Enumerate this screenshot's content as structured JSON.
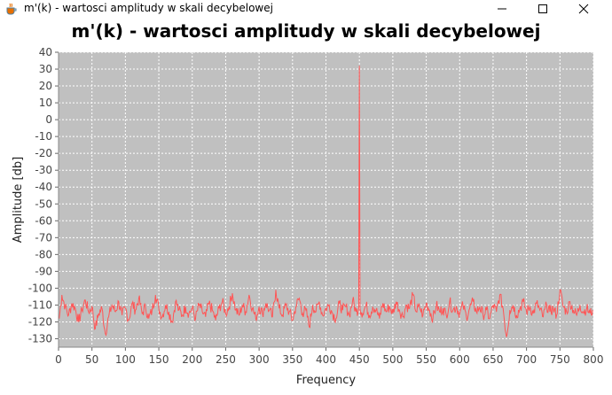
{
  "window": {
    "title": "m'(k) - wartosci amplitudy w skali decybelowej",
    "icon": "java-cup-icon",
    "controls": [
      "minimize",
      "maximize",
      "close"
    ]
  },
  "chart_data": {
    "type": "line",
    "title": "m'(k) - wartosci amplitudy w skali decybelowej",
    "xlabel": "Frequency",
    "ylabel": "Amplitude [db]",
    "xlim": [
      0,
      800
    ],
    "ylim": [
      -135,
      40
    ],
    "x_ticks": [
      0,
      50,
      100,
      150,
      200,
      250,
      300,
      350,
      400,
      450,
      500,
      550,
      600,
      650,
      700,
      750,
      800
    ],
    "y_ticks": [
      40,
      30,
      20,
      10,
      0,
      -10,
      -20,
      -30,
      -40,
      -50,
      -60,
      -70,
      -80,
      -90,
      -100,
      -110,
      -120,
      -130
    ],
    "grid": true,
    "legend": "none",
    "series_color": "#ff5555",
    "background": "#c0c0c0",
    "noise_floor_mean": -113,
    "noise_floor_range": [
      -129,
      -101
    ],
    "x_range": [
      1,
      799
    ],
    "peak": {
      "x": 450,
      "y": 32
    },
    "points": [
      [
        1,
        -118
      ],
      [
        5,
        -104
      ],
      [
        10,
        -111
      ],
      [
        15,
        -116
      ],
      [
        20,
        -109
      ],
      [
        25,
        -112
      ],
      [
        30,
        -120
      ],
      [
        35,
        -113
      ],
      [
        40,
        -107
      ],
      [
        45,
        -114
      ],
      [
        50,
        -111
      ],
      [
        55,
        -124
      ],
      [
        60,
        -115
      ],
      [
        65,
        -112
      ],
      [
        70,
        -127
      ],
      [
        75,
        -117
      ],
      [
        80,
        -110
      ],
      [
        85,
        -114
      ],
      [
        90,
        -108
      ],
      [
        95,
        -116
      ],
      [
        100,
        -112
      ],
      [
        105,
        -119
      ],
      [
        110,
        -109
      ],
      [
        115,
        -113
      ],
      [
        120,
        -106
      ],
      [
        125,
        -115
      ],
      [
        130,
        -111
      ],
      [
        135,
        -118
      ],
      [
        140,
        -113
      ],
      [
        145,
        -104
      ],
      [
        150,
        -112
      ],
      [
        155,
        -117
      ],
      [
        160,
        -110
      ],
      [
        165,
        -114
      ],
      [
        170,
        -120
      ],
      [
        175,
        -108
      ],
      [
        180,
        -113
      ],
      [
        185,
        -116
      ],
      [
        190,
        -111
      ],
      [
        195,
        -115
      ],
      [
        200,
        -112
      ],
      [
        205,
        -118
      ],
      [
        210,
        -110
      ],
      [
        215,
        -114
      ],
      [
        220,
        -117
      ],
      [
        225,
        -109
      ],
      [
        230,
        -113
      ],
      [
        235,
        -119
      ],
      [
        240,
        -112
      ],
      [
        245,
        -108
      ],
      [
        250,
        -115
      ],
      [
        255,
        -111
      ],
      [
        260,
        -103
      ],
      [
        265,
        -113
      ],
      [
        270,
        -116
      ],
      [
        275,
        -110
      ],
      [
        280,
        -114
      ],
      [
        285,
        -104
      ],
      [
        290,
        -112
      ],
      [
        295,
        -118
      ],
      [
        300,
        -111
      ],
      [
        305,
        -115
      ],
      [
        310,
        -109
      ],
      [
        315,
        -113
      ],
      [
        320,
        -117
      ],
      [
        325,
        -101
      ],
      [
        330,
        -112
      ],
      [
        335,
        -116
      ],
      [
        340,
        -110
      ],
      [
        345,
        -114
      ],
      [
        350,
        -119
      ],
      [
        355,
        -111
      ],
      [
        360,
        -106
      ],
      [
        365,
        -115
      ],
      [
        370,
        -113
      ],
      [
        375,
        -123
      ],
      [
        380,
        -110
      ],
      [
        385,
        -114
      ],
      [
        390,
        -108
      ],
      [
        395,
        -116
      ],
      [
        400,
        -112
      ],
      [
        405,
        -110
      ],
      [
        410,
        -115
      ],
      [
        415,
        -118
      ],
      [
        420,
        -109
      ],
      [
        425,
        -113
      ],
      [
        430,
        -111
      ],
      [
        435,
        -116
      ],
      [
        440,
        -107
      ],
      [
        445,
        -114
      ],
      [
        449,
        -112
      ],
      [
        450,
        32
      ],
      [
        451,
        -112
      ],
      [
        455,
        -115
      ],
      [
        460,
        -110
      ],
      [
        465,
        -116
      ],
      [
        470,
        -111
      ],
      [
        475,
        -113
      ],
      [
        480,
        -118
      ],
      [
        485,
        -109
      ],
      [
        490,
        -114
      ],
      [
        495,
        -111
      ],
      [
        500,
        -115
      ],
      [
        505,
        -108
      ],
      [
        510,
        -113
      ],
      [
        515,
        -117
      ],
      [
        520,
        -110
      ],
      [
        525,
        -112
      ],
      [
        530,
        -104
      ],
      [
        535,
        -114
      ],
      [
        540,
        -111
      ],
      [
        545,
        -116
      ],
      [
        550,
        -109
      ],
      [
        555,
        -113
      ],
      [
        560,
        -118
      ],
      [
        565,
        -110
      ],
      [
        570,
        -114
      ],
      [
        575,
        -112
      ],
      [
        580,
        -116
      ],
      [
        585,
        -108
      ],
      [
        590,
        -113
      ],
      [
        595,
        -111
      ],
      [
        600,
        -115
      ],
      [
        605,
        -110
      ],
      [
        610,
        -117
      ],
      [
        615,
        -112
      ],
      [
        620,
        -108
      ],
      [
        625,
        -114
      ],
      [
        630,
        -111
      ],
      [
        635,
        -116
      ],
      [
        640,
        -113
      ],
      [
        645,
        -118
      ],
      [
        650,
        -110
      ],
      [
        655,
        -114
      ],
      [
        660,
        -104
      ],
      [
        665,
        -112
      ],
      [
        670,
        -129
      ],
      [
        675,
        -113
      ],
      [
        680,
        -110
      ],
      [
        685,
        -116
      ],
      [
        690,
        -112
      ],
      [
        695,
        -108
      ],
      [
        700,
        -114
      ],
      [
        705,
        -111
      ],
      [
        710,
        -115
      ],
      [
        715,
        -109
      ],
      [
        720,
        -113
      ],
      [
        725,
        -117
      ],
      [
        730,
        -110
      ],
      [
        735,
        -114
      ],
      [
        740,
        -112
      ],
      [
        745,
        -116
      ],
      [
        750,
        -101
      ],
      [
        755,
        -111
      ],
      [
        760,
        -114
      ],
      [
        765,
        -108
      ],
      [
        770,
        -113
      ],
      [
        775,
        -116
      ],
      [
        780,
        -110
      ],
      [
        785,
        -114
      ],
      [
        790,
        -112
      ],
      [
        795,
        -115
      ],
      [
        799,
        -113
      ]
    ]
  }
}
